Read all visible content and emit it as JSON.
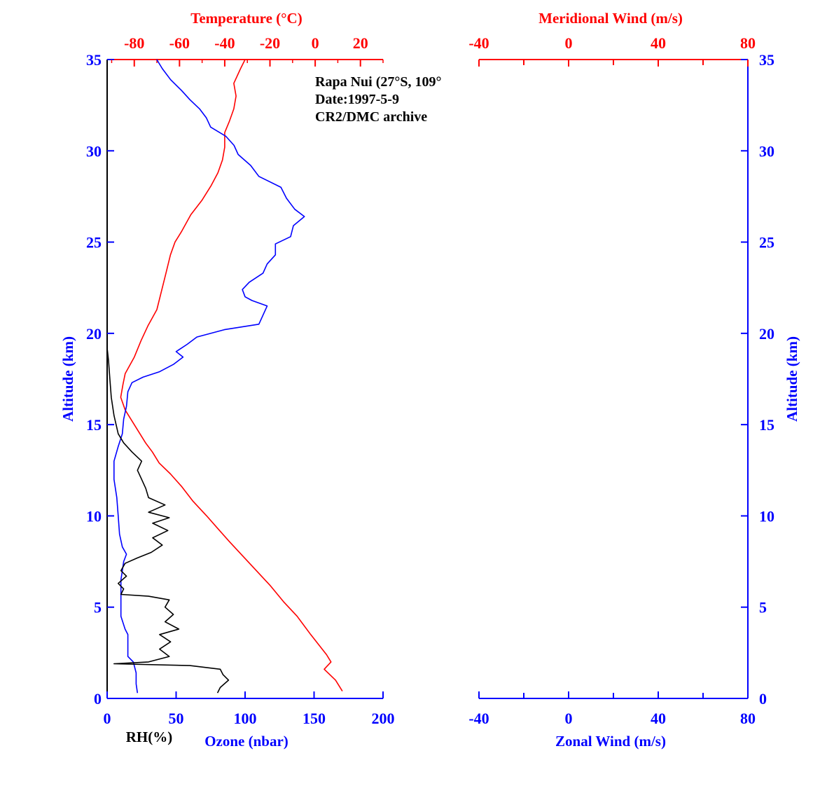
{
  "colors": {
    "temperature": "#ff0000",
    "ozone": "#0000ff",
    "rh": "#000000",
    "axis_blue": "#0000ff",
    "axis_red": "#ff0000",
    "background": "#ffffff"
  },
  "annotation": {
    "line1": "Rapa Nui (27°S, 109°",
    "line2": "Date:1997-5-9",
    "line3": "CR2/DMC archive"
  },
  "chart_data": [
    {
      "type": "line",
      "title": "",
      "panel": "left",
      "ylabel": "Altitude (km)",
      "ylim": [
        0,
        35
      ],
      "yticks": [
        "0",
        "5",
        "10",
        "15",
        "20",
        "25",
        "30",
        "35"
      ],
      "grid": false,
      "x_top": {
        "label": "Temperature (°C)",
        "range": [
          -92,
          30
        ],
        "ticks": [
          "-80",
          "-60",
          "-40",
          "-20",
          "0",
          "20"
        ]
      },
      "x_bottom": {
        "label": "Ozone (nbar)",
        "range": [
          0,
          200
        ],
        "ticks": [
          "0",
          "50",
          "100",
          "150",
          "200"
        ]
      },
      "rh_label": "RH(%)",
      "series": [
        {
          "key": "temperature",
          "axis": "top",
          "unit": "°C",
          "points": [
            [
              12,
              0.4
            ],
            [
              9,
              1.0
            ],
            [
              4,
              1.6
            ],
            [
              7,
              2.0
            ],
            [
              5,
              2.4
            ],
            [
              -2,
              3.5
            ],
            [
              -8,
              4.5
            ],
            [
              -14,
              5.3
            ],
            [
              -20,
              6.2
            ],
            [
              -26,
              7.0
            ],
            [
              -32,
              7.8
            ],
            [
              -38,
              8.6
            ],
            [
              -43,
              9.3
            ],
            [
              -48,
              10.0
            ],
            [
              -54,
              10.8
            ],
            [
              -59,
              11.6
            ],
            [
              -64,
              12.3
            ],
            [
              -69,
              12.9
            ],
            [
              -72,
              13.5
            ],
            [
              -75,
              14.0
            ],
            [
              -78,
              14.6
            ],
            [
              -81,
              15.2
            ],
            [
              -84,
              15.8
            ],
            [
              -86,
              16.5
            ],
            [
              -85,
              17.2
            ],
            [
              -84,
              17.8
            ],
            [
              -80,
              18.7
            ],
            [
              -77,
              19.6
            ],
            [
              -74,
              20.4
            ],
            [
              -70,
              21.3
            ],
            [
              -68,
              22.3
            ],
            [
              -66,
              23.3
            ],
            [
              -64,
              24.3
            ],
            [
              -62,
              25.0
            ],
            [
              -59,
              25.6
            ],
            [
              -55,
              26.5
            ],
            [
              -50,
              27.3
            ],
            [
              -46,
              28.1
            ],
            [
              -43,
              28.8
            ],
            [
              -41,
              29.5
            ],
            [
              -40,
              30.2
            ],
            [
              -40,
              31.0
            ],
            [
              -38,
              31.6
            ],
            [
              -36,
              32.3
            ],
            [
              -35,
              33.0
            ],
            [
              -36,
              33.7
            ],
            [
              -33,
              34.5
            ],
            [
              -31,
              35.0
            ]
          ]
        },
        {
          "key": "ozone",
          "axis": "bottom",
          "unit": "nbar",
          "points": [
            [
              22,
              0.3
            ],
            [
              21,
              0.8
            ],
            [
              21,
              1.4
            ],
            [
              19,
              2.0
            ],
            [
              15,
              2.3
            ],
            [
              15,
              3.0
            ],
            [
              15,
              3.5
            ],
            [
              13,
              3.8
            ],
            [
              10,
              4.5
            ],
            [
              10,
              5.5
            ],
            [
              10,
              6.5
            ],
            [
              11,
              7.0
            ],
            [
              12,
              7.5
            ],
            [
              14,
              7.9
            ],
            [
              11,
              8.3
            ],
            [
              9,
              9.0
            ],
            [
              8,
              10.0
            ],
            [
              7,
              11.0
            ],
            [
              5,
              12.0
            ],
            [
              5,
              13.0
            ],
            [
              8,
              13.8
            ],
            [
              11,
              14.5
            ],
            [
              12,
              15.3
            ],
            [
              14,
              16.0
            ],
            [
              15,
              16.8
            ],
            [
              18,
              17.3
            ],
            [
              26,
              17.6
            ],
            [
              38,
              17.9
            ],
            [
              48,
              18.3
            ],
            [
              55,
              18.7
            ],
            [
              50,
              19.0
            ],
            [
              58,
              19.4
            ],
            [
              65,
              19.8
            ],
            [
              85,
              20.2
            ],
            [
              110,
              20.5
            ],
            [
              113,
              21.0
            ],
            [
              116,
              21.5
            ],
            [
              105,
              21.8
            ],
            [
              100,
              22.0
            ],
            [
              98,
              22.4
            ],
            [
              103,
              22.8
            ],
            [
              113,
              23.3
            ],
            [
              116,
              23.8
            ],
            [
              122,
              24.3
            ],
            [
              122,
              24.9
            ],
            [
              133,
              25.3
            ],
            [
              135,
              25.9
            ],
            [
              143,
              26.4
            ],
            [
              136,
              26.8
            ],
            [
              130,
              27.4
            ],
            [
              126,
              28.0
            ],
            [
              110,
              28.6
            ],
            [
              104,
              29.2
            ],
            [
              95,
              29.8
            ],
            [
              92,
              30.3
            ],
            [
              86,
              30.8
            ],
            [
              75,
              31.3
            ],
            [
              72,
              31.8
            ],
            [
              67,
              32.3
            ],
            [
              60,
              32.8
            ],
            [
              54,
              33.3
            ],
            [
              46,
              33.9
            ],
            [
              40,
              34.5
            ],
            [
              36,
              35.0
            ]
          ]
        },
        {
          "key": "rh",
          "axis": "bottom",
          "unit": "%",
          "points": [
            [
              80,
              0.3
            ],
            [
              82,
              0.6
            ],
            [
              88,
              1.0
            ],
            [
              84,
              1.3
            ],
            [
              82,
              1.6
            ],
            [
              60,
              1.8
            ],
            [
              5,
              1.9
            ],
            [
              30,
              2.0
            ],
            [
              45,
              2.3
            ],
            [
              38,
              2.7
            ],
            [
              46,
              3.1
            ],
            [
              38,
              3.5
            ],
            [
              52,
              3.8
            ],
            [
              42,
              4.2
            ],
            [
              48,
              4.6
            ],
            [
              42,
              5.0
            ],
            [
              45,
              5.4
            ],
            [
              30,
              5.6
            ],
            [
              10,
              5.7
            ],
            [
              12,
              6.0
            ],
            [
              8,
              6.3
            ],
            [
              14,
              6.7
            ],
            [
              10,
              7.0
            ],
            [
              13,
              7.4
            ],
            [
              22,
              7.7
            ],
            [
              32,
              8.0
            ],
            [
              40,
              8.4
            ],
            [
              33,
              8.8
            ],
            [
              44,
              9.2
            ],
            [
              33,
              9.6
            ],
            [
              45,
              9.9
            ],
            [
              30,
              10.2
            ],
            [
              42,
              10.6
            ],
            [
              30,
              11.0
            ],
            [
              28,
              11.5
            ],
            [
              25,
              12.0
            ],
            [
              22,
              12.5
            ],
            [
              25,
              13.0
            ],
            [
              18,
              13.5
            ],
            [
              12,
              14.0
            ],
            [
              8,
              14.5
            ],
            [
              5,
              15.5
            ],
            [
              3,
              16.5
            ],
            [
              2,
              17.5
            ],
            [
              1,
              18.5
            ],
            [
              0,
              19.2
            ]
          ]
        }
      ]
    },
    {
      "type": "line",
      "title": "",
      "panel": "right",
      "ylabel": "Altitude (km)",
      "ylim": [
        0,
        35
      ],
      "yticks": [
        "0",
        "5",
        "10",
        "15",
        "20",
        "25",
        "30",
        "35"
      ],
      "grid": false,
      "x_top": {
        "label": "Meridional Wind (m/s)",
        "range": [
          -40,
          80
        ],
        "ticks": [
          "-40",
          "0",
          "40",
          "80"
        ]
      },
      "x_bottom": {
        "label": "Zonal Wind (m/s)",
        "range": [
          -40,
          80
        ],
        "ticks": [
          "-40",
          "0",
          "40",
          "80"
        ]
      },
      "series": []
    }
  ]
}
